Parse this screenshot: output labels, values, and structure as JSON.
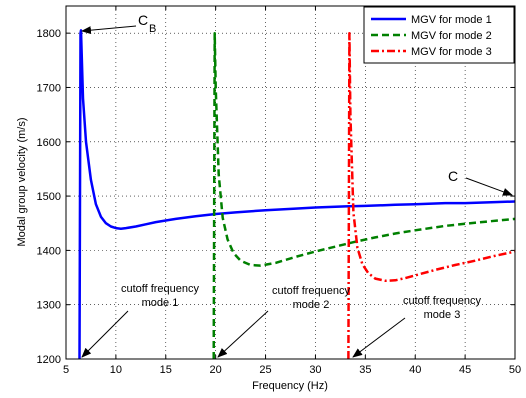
{
  "chart_data": {
    "type": "line",
    "title": "",
    "xlabel": "Frequency (Hz)",
    "ylabel": "Modal group velocity (m/s)",
    "xlim": [
      5,
      50
    ],
    "ylim": [
      1200,
      1850
    ],
    "xticks": [
      "5",
      "10",
      "15",
      "20",
      "25",
      "30",
      "35",
      "40",
      "45",
      "50"
    ],
    "yticks": [
      "1200",
      "1300",
      "1400",
      "1500",
      "1600",
      "1700",
      "1800"
    ],
    "grid": "on (dotted)",
    "legend_position": "top-right",
    "series": [
      {
        "name": "MGV for mode 1",
        "color": "#0000ff",
        "dash": "solid",
        "x": [
          6.35,
          6.4,
          6.45,
          6.5,
          6.7,
          7.0,
          7.5,
          8.0,
          8.5,
          9.0,
          9.5,
          10.0,
          10.5,
          11.0,
          12.0,
          13.0,
          14.0,
          16.0,
          18.0,
          20.0,
          22.0,
          25.0,
          28.0,
          30.0,
          33.0,
          35.0,
          38.0,
          40.0,
          43.0,
          45.0,
          48.0,
          50.0
        ],
        "y": [
          1200,
          1500,
          1800,
          1805,
          1680,
          1600,
          1530,
          1485,
          1462,
          1450,
          1444,
          1441,
          1440,
          1441,
          1444,
          1448,
          1452,
          1458,
          1463,
          1467,
          1470,
          1474,
          1477,
          1479,
          1481,
          1482,
          1484,
          1485,
          1487,
          1487,
          1489,
          1490
        ]
      },
      {
        "name": "MGV for mode 2",
        "color": "#008000",
        "dash": "dashed",
        "x": [
          19.8,
          19.85,
          19.9,
          20.0,
          20.3,
          20.7,
          21.2,
          21.8,
          22.5,
          23.5,
          24.5,
          26.0,
          28.0,
          30.0,
          32.0,
          34.0,
          36.0,
          38.0,
          40.0,
          43.0,
          46.0,
          50.0
        ],
        "y": [
          1200,
          1500,
          1800,
          1700,
          1540,
          1460,
          1420,
          1395,
          1381,
          1373,
          1372,
          1377,
          1388,
          1398,
          1407,
          1416,
          1424,
          1431,
          1437,
          1445,
          1451,
          1458
        ]
      },
      {
        "name": "MGV for mode 3",
        "color": "#ff0000",
        "dash": "dash-dot",
        "x": [
          33.3,
          33.35,
          33.4,
          33.5,
          33.8,
          34.2,
          34.7,
          35.3,
          36.0,
          37.0,
          38.0,
          39.0,
          40.0,
          42.0,
          44.0,
          46.0,
          48.0,
          50.0
        ],
        "y": [
          1200,
          1500,
          1800,
          1650,
          1470,
          1405,
          1375,
          1358,
          1348,
          1344,
          1345,
          1349,
          1354,
          1364,
          1373,
          1381,
          1390,
          1398
        ]
      }
    ],
    "annotations": {
      "cb_main": "C",
      "cb_sub": "B",
      "c_label": "C",
      "cutoff1_line1": "cutoff frequency",
      "cutoff1_line2": "mode 1",
      "cutoff2_line1": "cutoff frequency",
      "cutoff2_line2": "mode 2",
      "cutoff3_line1": "cutoff frequency",
      "cutoff3_line2": "mode 3"
    }
  }
}
